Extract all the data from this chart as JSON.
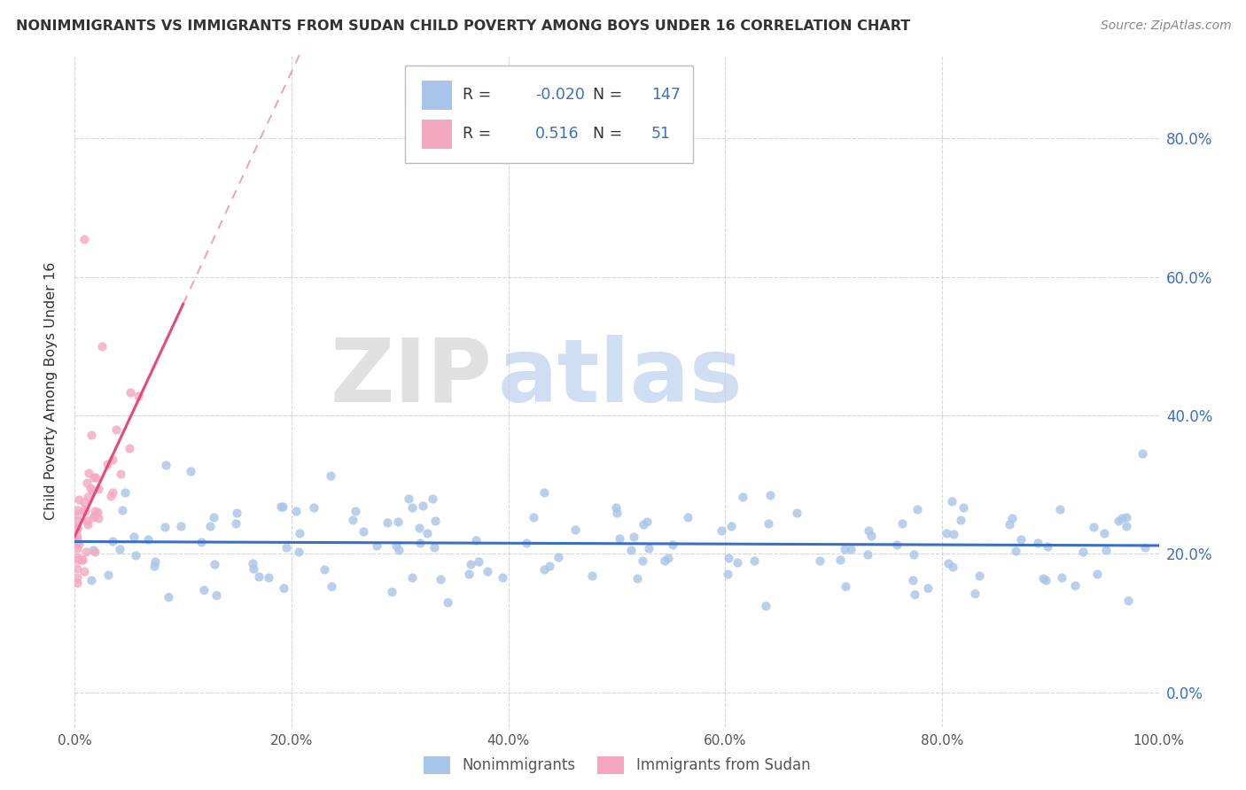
{
  "title": "NONIMMIGRANTS VS IMMIGRANTS FROM SUDAN CHILD POVERTY AMONG BOYS UNDER 16 CORRELATION CHART",
  "source": "Source: ZipAtlas.com",
  "ylabel": "Child Poverty Among Boys Under 16",
  "xlim": [
    0,
    1.0
  ],
  "ylim": [
    -0.05,
    0.92
  ],
  "xticks": [
    0.0,
    0.2,
    0.4,
    0.6,
    0.8,
    1.0
  ],
  "xticklabels": [
    "0.0%",
    "20.0%",
    "40.0%",
    "60.0%",
    "80.0%",
    "100.0%"
  ],
  "yticks": [
    0.0,
    0.2,
    0.4,
    0.6,
    0.8
  ],
  "yticklabels_right": [
    "0.0%",
    "20.0%",
    "40.0%",
    "60.0%",
    "80.0%"
  ],
  "blue_R": -0.02,
  "blue_N": 147,
  "pink_R": 0.516,
  "pink_N": 51,
  "blue_color": "#a8c4e8",
  "pink_color": "#f4a8c0",
  "blue_line_color": "#3a6fc4",
  "pink_line_color": "#e84878",
  "watermark_zip": "ZIP",
  "watermark_atlas": "atlas",
  "background_color": "#ffffff",
  "legend_text_color": "#3a6fc4",
  "grid_color": "#cccccc",
  "title_color": "#333333",
  "source_color": "#888888",
  "ylabel_color": "#333333",
  "tick_label_color": "#555555",
  "right_tick_color": "#3a6fc4"
}
